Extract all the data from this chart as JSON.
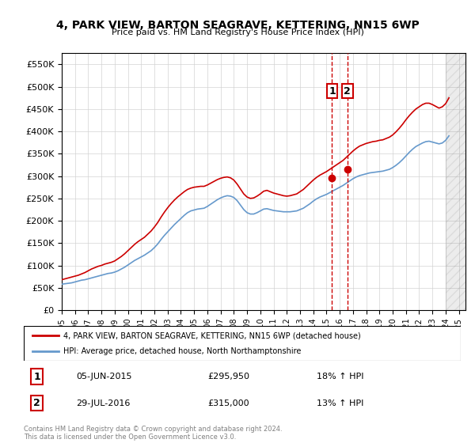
{
  "title": "4, PARK VIEW, BARTON SEAGRAVE, KETTERING, NN15 6WP",
  "subtitle": "Price paid vs. HM Land Registry's House Price Index (HPI)",
  "ylabel_ticks": [
    0,
    50000,
    100000,
    150000,
    200000,
    250000,
    300000,
    350000,
    400000,
    450000,
    500000,
    550000
  ],
  "ylim": [
    0,
    575000
  ],
  "xlim_start": 1995.0,
  "xlim_end": 2025.5,
  "transaction1_date": 2015.42,
  "transaction2_date": 2016.58,
  "transaction1_price": 295950,
  "transaction2_price": 315000,
  "transaction1_label": "1",
  "transaction2_label": "2",
  "transaction1_hpi": "18% ↑ HPI",
  "transaction2_hpi": "13% ↑ HPI",
  "transaction1_date_str": "05-JUN-2015",
  "transaction2_date_str": "29-JUL-2016",
  "legend_line1": "4, PARK VIEW, BARTON SEAGRAVE, KETTERING, NN15 6WP (detached house)",
  "legend_line2": "HPI: Average price, detached house, North Northamptonshire",
  "red_color": "#cc0000",
  "blue_color": "#6699cc",
  "footer": "Contains HM Land Registry data © Crown copyright and database right 2024.\nThis data is licensed under the Open Government Licence v3.0.",
  "hpi_years": [
    1995,
    1995.25,
    1995.5,
    1995.75,
    1996,
    1996.25,
    1996.5,
    1996.75,
    1997,
    1997.25,
    1997.5,
    1997.75,
    1998,
    1998.25,
    1998.5,
    1998.75,
    1999,
    1999.25,
    1999.5,
    1999.75,
    2000,
    2000.25,
    2000.5,
    2000.75,
    2001,
    2001.25,
    2001.5,
    2001.75,
    2002,
    2002.25,
    2002.5,
    2002.75,
    2003,
    2003.25,
    2003.5,
    2003.75,
    2004,
    2004.25,
    2004.5,
    2004.75,
    2005,
    2005.25,
    2005.5,
    2005.75,
    2006,
    2006.25,
    2006.5,
    2006.75,
    2007,
    2007.25,
    2007.5,
    2007.75,
    2008,
    2008.25,
    2008.5,
    2008.75,
    2009,
    2009.25,
    2009.5,
    2009.75,
    2010,
    2010.25,
    2010.5,
    2010.75,
    2011,
    2011.25,
    2011.5,
    2011.75,
    2012,
    2012.25,
    2012.5,
    2012.75,
    2013,
    2013.25,
    2013.5,
    2013.75,
    2014,
    2014.25,
    2014.5,
    2014.75,
    2015,
    2015.25,
    2015.5,
    2015.75,
    2016,
    2016.25,
    2016.5,
    2016.75,
    2017,
    2017.25,
    2017.5,
    2017.75,
    2018,
    2018.25,
    2018.5,
    2018.75,
    2019,
    2019.25,
    2019.5,
    2019.75,
    2020,
    2020.25,
    2020.5,
    2020.75,
    2021,
    2021.25,
    2021.5,
    2021.75,
    2022,
    2022.25,
    2022.5,
    2022.75,
    2023,
    2023.25,
    2023.5,
    2023.75,
    2024,
    2024.25
  ],
  "hpi_values": [
    58000,
    59000,
    60000,
    61000,
    63000,
    65000,
    67000,
    68000,
    70000,
    72000,
    74000,
    76000,
    78000,
    80000,
    82000,
    83000,
    85000,
    88000,
    92000,
    96000,
    101000,
    106000,
    111000,
    115000,
    119000,
    123000,
    128000,
    133000,
    140000,
    148000,
    158000,
    167000,
    175000,
    183000,
    191000,
    198000,
    205000,
    212000,
    218000,
    222000,
    224000,
    226000,
    227000,
    228000,
    232000,
    237000,
    242000,
    247000,
    251000,
    254000,
    256000,
    255000,
    252000,
    245000,
    235000,
    225000,
    218000,
    215000,
    215000,
    218000,
    222000,
    226000,
    227000,
    225000,
    223000,
    222000,
    221000,
    220000,
    220000,
    220000,
    221000,
    222000,
    225000,
    228000,
    233000,
    238000,
    244000,
    249000,
    253000,
    256000,
    259000,
    263000,
    267000,
    271000,
    275000,
    279000,
    284000,
    289000,
    294000,
    298000,
    301000,
    303000,
    305000,
    307000,
    308000,
    309000,
    310000,
    311000,
    313000,
    315000,
    319000,
    324000,
    330000,
    337000,
    345000,
    353000,
    360000,
    366000,
    370000,
    374000,
    377000,
    378000,
    376000,
    374000,
    372000,
    374000,
    380000,
    390000
  ],
  "red_years": [
    1995,
    1995.25,
    1995.5,
    1995.75,
    1996,
    1996.25,
    1996.5,
    1996.75,
    1997,
    1997.25,
    1997.5,
    1997.75,
    1998,
    1998.25,
    1998.5,
    1998.75,
    1999,
    1999.25,
    1999.5,
    1999.75,
    2000,
    2000.25,
    2000.5,
    2000.75,
    2001,
    2001.25,
    2001.5,
    2001.75,
    2002,
    2002.25,
    2002.5,
    2002.75,
    2003,
    2003.25,
    2003.5,
    2003.75,
    2004,
    2004.25,
    2004.5,
    2004.75,
    2005,
    2005.25,
    2005.5,
    2005.75,
    2006,
    2006.25,
    2006.5,
    2006.75,
    2007,
    2007.25,
    2007.5,
    2007.75,
    2008,
    2008.25,
    2008.5,
    2008.75,
    2009,
    2009.25,
    2009.5,
    2009.75,
    2010,
    2010.25,
    2010.5,
    2010.75,
    2011,
    2011.25,
    2011.5,
    2011.75,
    2012,
    2012.25,
    2012.5,
    2012.75,
    2013,
    2013.25,
    2013.5,
    2013.75,
    2014,
    2014.25,
    2014.5,
    2014.75,
    2015,
    2015.25,
    2015.5,
    2015.75,
    2016,
    2016.25,
    2016.5,
    2016.75,
    2017,
    2017.25,
    2017.5,
    2017.75,
    2018,
    2018.25,
    2018.5,
    2018.75,
    2019,
    2019.25,
    2019.5,
    2019.75,
    2020,
    2020.25,
    2020.5,
    2020.75,
    2021,
    2021.25,
    2021.5,
    2021.75,
    2022,
    2022.25,
    2022.5,
    2022.75,
    2023,
    2023.25,
    2023.5,
    2023.75,
    2024,
    2024.25
  ],
  "red_values": [
    68000,
    70000,
    72000,
    74000,
    76000,
    78000,
    81000,
    84000,
    88000,
    92000,
    95000,
    98000,
    100000,
    103000,
    105000,
    107000,
    110000,
    115000,
    120000,
    126000,
    133000,
    140000,
    147000,
    153000,
    158000,
    163000,
    170000,
    177000,
    186000,
    196000,
    208000,
    219000,
    229000,
    238000,
    246000,
    253000,
    259000,
    265000,
    270000,
    273000,
    275000,
    276000,
    277000,
    277000,
    280000,
    284000,
    288000,
    292000,
    295000,
    297000,
    298000,
    296000,
    291000,
    282000,
    271000,
    260000,
    253000,
    250000,
    251000,
    255000,
    260000,
    266000,
    268000,
    265000,
    262000,
    260000,
    258000,
    256000,
    255000,
    256000,
    258000,
    260000,
    265000,
    270000,
    277000,
    284000,
    291000,
    297000,
    302000,
    306000,
    310000,
    315000,
    320000,
    325000,
    330000,
    335000,
    342000,
    349000,
    356000,
    362000,
    367000,
    370000,
    373000,
    375000,
    377000,
    378000,
    380000,
    381000,
    384000,
    387000,
    392000,
    399000,
    407000,
    416000,
    426000,
    435000,
    443000,
    450000,
    455000,
    460000,
    463000,
    463000,
    460000,
    456000,
    452000,
    455000,
    462000,
    475000
  ],
  "hatched_region_start": 2024.0,
  "hatched_region_end": 2025.5,
  "marker1_y": 295950,
  "marker2_y": 315000
}
